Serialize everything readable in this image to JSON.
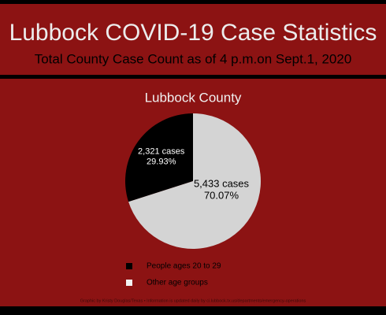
{
  "chart_data": {
    "type": "pie",
    "title": "Lubbock COVID-19 Case Statistics",
    "subtitle": "Total County Case Count as of 4 p.m.on Sept.1, 2020",
    "chart_title": "Lubbock County",
    "categories": [
      "People ages 20 to 29",
      "Other age groups"
    ],
    "colors": [
      "#000000",
      "#d4d4d4"
    ],
    "values": [
      2321,
      5433
    ],
    "value_labels": [
      "2,321 cases",
      "5,433 cases"
    ],
    "percents": [
      29.93,
      70.07
    ],
    "percent_labels": [
      "29.93%",
      "70.07%"
    ],
    "credit": "Graphic by Kristy Douglas/Texas • Information is updated daily by ci.lubbock.tx.us/departments/emergency-operations"
  }
}
